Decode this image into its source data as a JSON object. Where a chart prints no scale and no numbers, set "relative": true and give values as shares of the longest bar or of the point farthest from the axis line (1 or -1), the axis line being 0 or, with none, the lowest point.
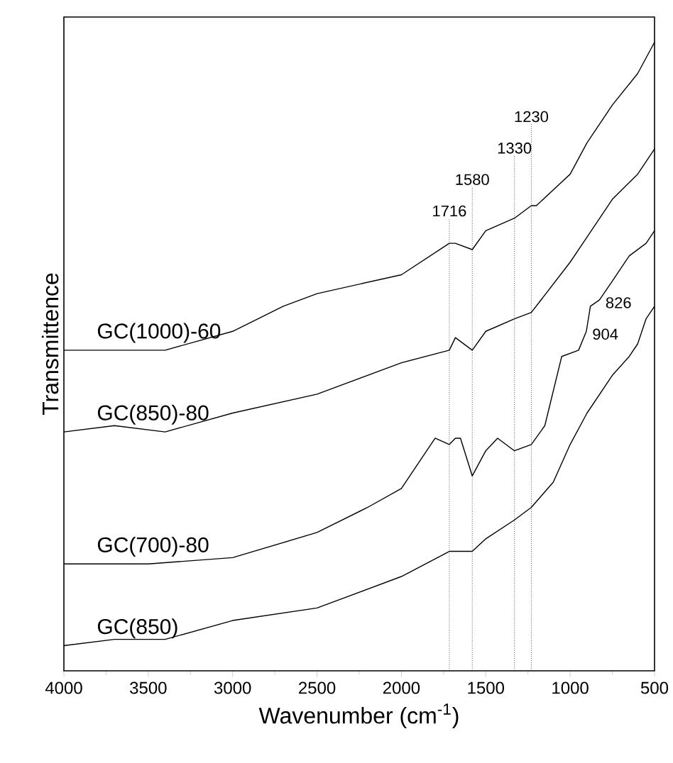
{
  "chart_data": {
    "type": "line",
    "relative": true,
    "xlabel": "Wavenumber (cm$^{-1}$)",
    "ylabel": "Transmittence",
    "xlim": [
      4000,
      500
    ],
    "xticks": [
      4000,
      3500,
      3000,
      2500,
      2000,
      1500,
      1000,
      500
    ],
    "line_style": "solid",
    "series": [
      {
        "name": "GC(1000)-60",
        "color": "#000000",
        "x": [
          4000,
          3700,
          3400,
          3000,
          2700,
          2500,
          2000,
          1716,
          1680,
          1580,
          1500,
          1330,
          1230,
          1200,
          1000,
          900,
          750,
          600,
          500
        ],
        "values": [
          0.51,
          0.51,
          0.51,
          0.54,
          0.58,
          0.6,
          0.63,
          0.68,
          0.68,
          0.67,
          0.7,
          0.72,
          0.74,
          0.74,
          0.79,
          0.84,
          0.9,
          0.95,
          1
        ]
      },
      {
        "name": "GC(850)-80",
        "color": "#000000",
        "x": [
          4000,
          3700,
          3400,
          3000,
          2500,
          2000,
          1716,
          1680,
          1580,
          1500,
          1330,
          1230,
          1000,
          900,
          750,
          600,
          500
        ],
        "values": [
          0.38,
          0.39,
          0.38,
          0.41,
          0.44,
          0.49,
          0.51,
          0.53,
          0.51,
          0.54,
          0.56,
          0.57,
          0.65,
          0.69,
          0.75,
          0.79,
          0.83
        ]
      },
      {
        "name": "GC(700)-80",
        "color": "#000000",
        "x": [
          4000,
          3500,
          3000,
          2500,
          2200,
          2000,
          1850,
          1800,
          1716,
          1680,
          1650,
          1580,
          1500,
          1430,
          1330,
          1230,
          1150,
          1050,
          950,
          904,
          880,
          826,
          750,
          650,
          550,
          500
        ],
        "values": [
          0.17,
          0.17,
          0.18,
          0.22,
          0.26,
          0.29,
          0.35,
          0.37,
          0.36,
          0.37,
          0.37,
          0.31,
          0.35,
          0.37,
          0.35,
          0.36,
          0.39,
          0.5,
          0.51,
          0.54,
          0.58,
          0.59,
          0.62,
          0.66,
          0.68,
          0.7
        ]
      },
      {
        "name": "GC(850)",
        "color": "#000000",
        "x": [
          4000,
          3700,
          3400,
          3000,
          2500,
          2000,
          1716,
          1680,
          1580,
          1500,
          1330,
          1230,
          1100,
          1000,
          900,
          750,
          650,
          600,
          550,
          500
        ],
        "values": [
          0.04,
          0.05,
          0.05,
          0.08,
          0.1,
          0.15,
          0.19,
          0.19,
          0.19,
          0.21,
          0.24,
          0.26,
          0.3,
          0.36,
          0.41,
          0.47,
          0.5,
          0.52,
          0.56,
          0.58
        ]
      }
    ],
    "ref_lines": [
      {
        "axis": "x",
        "value": 1716,
        "label": "1716",
        "line_style": "dotted"
      },
      {
        "axis": "x",
        "value": 1580,
        "label": "1580",
        "line_style": "dotted"
      },
      {
        "axis": "x",
        "value": 1330,
        "label": "1330",
        "line_style": "dotted"
      },
      {
        "axis": "x",
        "value": 1230,
        "label": "1230",
        "line_style": "dotted"
      }
    ],
    "annotations": [
      {
        "text": "904",
        "x": 904,
        "y": 0.54
      },
      {
        "text": "826",
        "x": 826,
        "y": 0.59
      }
    ]
  }
}
